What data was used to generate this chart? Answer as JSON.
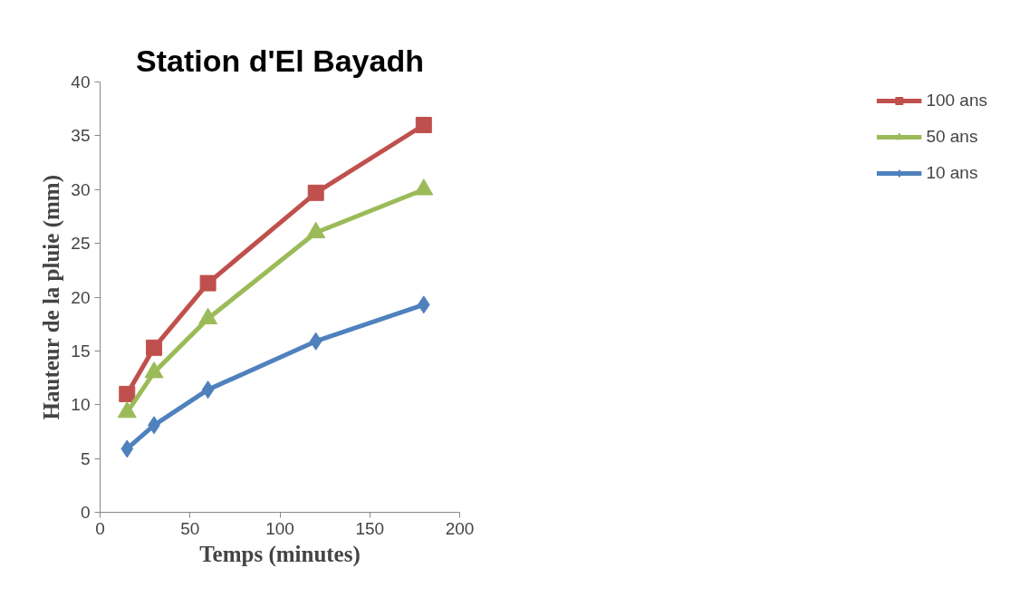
{
  "chart_data": {
    "type": "line",
    "title": "Station d'El Bayadh",
    "xlabel": "Temps (minutes)",
    "ylabel": "Hauteur de la pluie (mm)",
    "x": [
      15,
      30,
      60,
      120,
      180
    ],
    "series": [
      {
        "name": "100 ans",
        "color": "#c0504d",
        "marker": "square",
        "values": [
          11.0,
          15.3,
          21.3,
          29.7,
          36.0
        ]
      },
      {
        "name": "50 ans",
        "color": "#9bbb59",
        "marker": "triangle",
        "values": [
          9.3,
          13.0,
          18.0,
          26.0,
          30.0
        ]
      },
      {
        "name": "10 ans",
        "color": "#4f81bd",
        "marker": "diamond",
        "values": [
          5.9,
          8.1,
          11.4,
          15.9,
          19.3
        ]
      }
    ],
    "xlim": [
      0,
      200
    ],
    "xticks": [
      0,
      50,
      100,
      150,
      200
    ],
    "ylim": [
      0,
      40
    ],
    "yticks": [
      0,
      5,
      10,
      15,
      20,
      25,
      30,
      35,
      40
    ],
    "grid": false,
    "legend": "right",
    "line_style": "solid"
  }
}
